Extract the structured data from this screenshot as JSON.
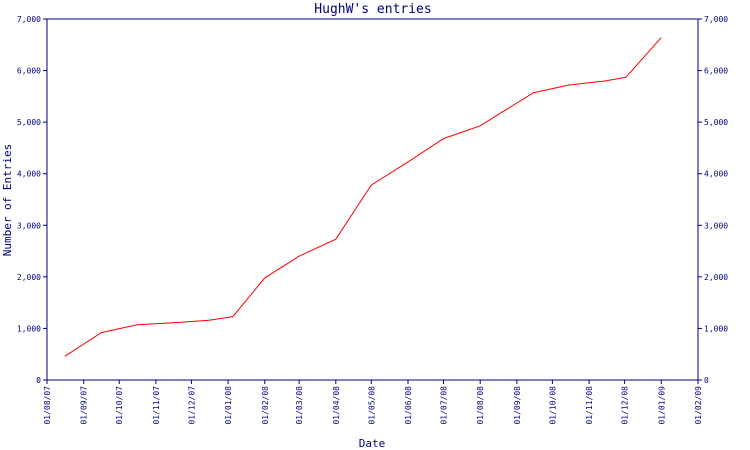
{
  "colors": {
    "axis": "#000080",
    "series": "#ff0000",
    "background": "#ffffff"
  },
  "chart_data": {
    "type": "line",
    "title": "HughW's entries",
    "xlabel": "Date",
    "ylabel": "Number of Entries",
    "ylim": [
      0,
      7000
    ],
    "y_ticks": [
      0,
      1000,
      2000,
      3000,
      4000,
      5000,
      6000,
      7000
    ],
    "y_tick_labels": [
      "0",
      "1,000",
      "2,000",
      "3,000",
      "4,000",
      "5,000",
      "6,000",
      "7,000"
    ],
    "x_tick_labels": [
      "01/08/07",
      "01/09/07",
      "01/10/07",
      "01/11/07",
      "01/12/07",
      "01/01/08",
      "01/02/08",
      "01/03/08",
      "01/04/08",
      "01/05/08",
      "01/06/08",
      "01/07/08",
      "01/08/08",
      "01/09/08",
      "01/10/08",
      "01/11/08",
      "01/12/08",
      "01/01/09",
      "01/02/09"
    ],
    "xlim": [
      "01/08/07",
      "01/02/09"
    ],
    "right_axis": true,
    "grid": false,
    "series": [
      {
        "x": [
          "2007-08-16",
          "2007-09-16",
          "2007-10-16",
          "2007-11-16",
          "2007-12-16",
          "2008-01-05",
          "2008-02-01",
          "2008-03-01",
          "2008-04-01",
          "2008-05-01",
          "2008-06-01",
          "2008-07-01",
          "2008-08-01",
          "2008-08-15",
          "2008-09-15",
          "2008-10-15",
          "2008-11-15",
          "2008-12-02",
          "2009-01-01"
        ],
        "values": [
          460,
          920,
          1070,
          1110,
          1160,
          1230,
          1980,
          2400,
          2730,
          3780,
          4230,
          4680,
          4930,
          5130,
          5570,
          5720,
          5800,
          5870,
          6640
        ]
      }
    ]
  }
}
